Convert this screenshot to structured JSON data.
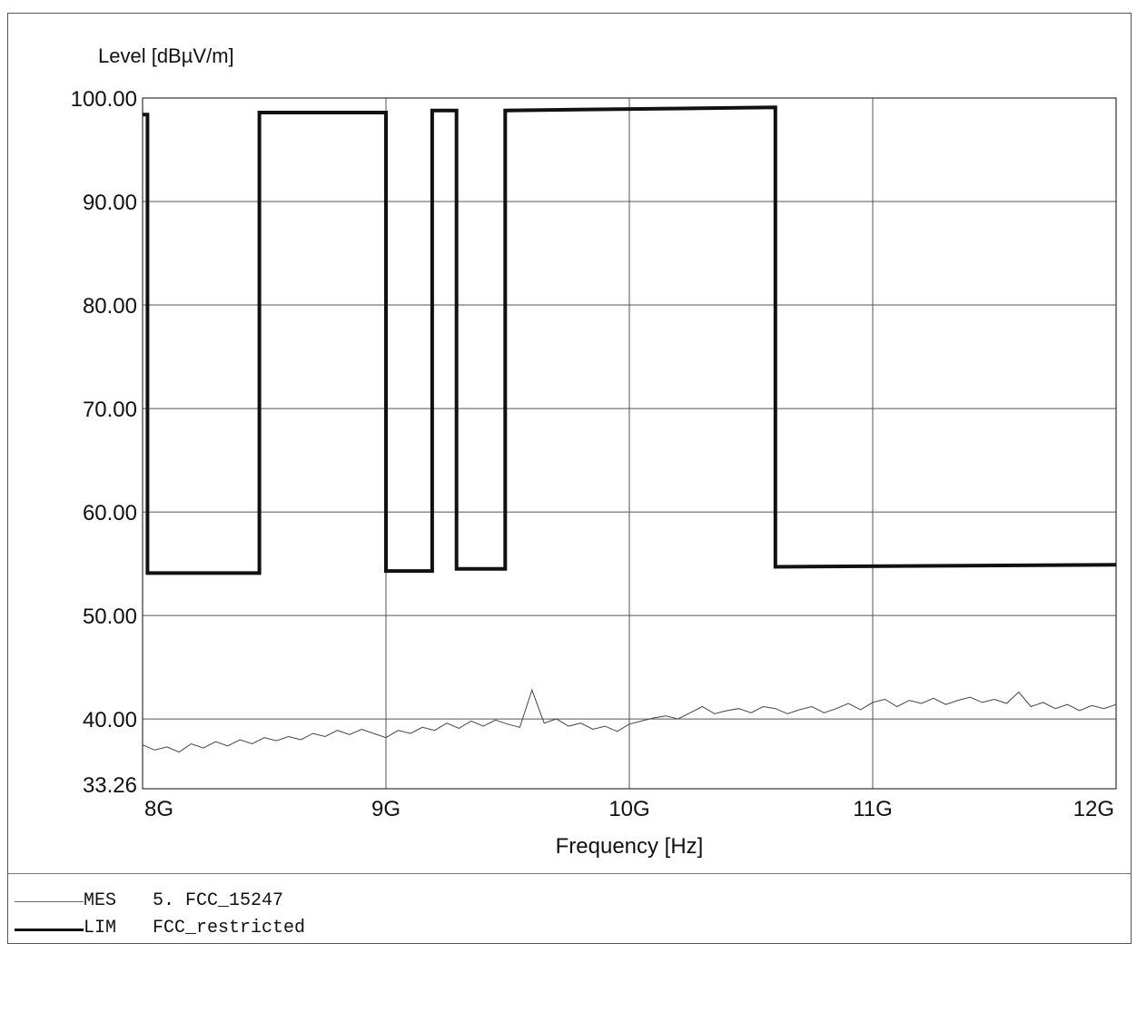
{
  "chart_data": {
    "type": "line",
    "title": "",
    "ylabel": "Level [dBµV/m]",
    "xlabel": "Frequency [Hz]",
    "xlim": [
      8.0,
      12.0
    ],
    "ylim": [
      33.26,
      100.0
    ],
    "x_unit": "GHz",
    "x_ticks": [
      {
        "value": 8,
        "label": "8G"
      },
      {
        "value": 9,
        "label": "9G"
      },
      {
        "value": 10,
        "label": "10G"
      },
      {
        "value": 11,
        "label": "11G"
      },
      {
        "value": 12,
        "label": "12G"
      }
    ],
    "y_ticks": [
      {
        "value": 100,
        "label": "100.00"
      },
      {
        "value": 90,
        "label": "90.00"
      },
      {
        "value": 80,
        "label": "80.00"
      },
      {
        "value": 70,
        "label": "70.00"
      },
      {
        "value": 60,
        "label": "60.00"
      },
      {
        "value": 50,
        "label": "50.00"
      },
      {
        "value": 40,
        "label": "40.00"
      },
      {
        "value": 33.26,
        "label": "33.26"
      }
    ],
    "grid": true,
    "legend_position": "bottom",
    "series": [
      {
        "code": "MES",
        "name": "5. FCC_15247",
        "style": "thin",
        "color": "#444444",
        "x": [
          8.0,
          8.05,
          8.1,
          8.15,
          8.2,
          8.25,
          8.3,
          8.35,
          8.4,
          8.45,
          8.5,
          8.55,
          8.6,
          8.65,
          8.7,
          8.75,
          8.8,
          8.85,
          8.9,
          8.95,
          9.0,
          9.05,
          9.1,
          9.15,
          9.2,
          9.25,
          9.3,
          9.35,
          9.4,
          9.45,
          9.5,
          9.55,
          9.6,
          9.65,
          9.7,
          9.75,
          9.8,
          9.85,
          9.9,
          9.95,
          10.0,
          10.05,
          10.1,
          10.15,
          10.2,
          10.25,
          10.3,
          10.35,
          10.4,
          10.45,
          10.5,
          10.55,
          10.6,
          10.65,
          10.7,
          10.75,
          10.8,
          10.85,
          10.9,
          10.95,
          11.0,
          11.05,
          11.1,
          11.15,
          11.2,
          11.25,
          11.3,
          11.35,
          11.4,
          11.45,
          11.5,
          11.55,
          11.6,
          11.65,
          11.7,
          11.75,
          11.8,
          11.85,
          11.9,
          11.95,
          12.0
        ],
        "y": [
          37.5,
          37.0,
          37.3,
          36.8,
          37.6,
          37.2,
          37.8,
          37.4,
          38.0,
          37.6,
          38.2,
          37.9,
          38.3,
          38.0,
          38.6,
          38.3,
          38.9,
          38.5,
          39.0,
          38.6,
          38.2,
          38.9,
          38.6,
          39.2,
          38.9,
          39.6,
          39.1,
          39.8,
          39.3,
          39.9,
          39.5,
          39.2,
          42.8,
          39.6,
          40.0,
          39.3,
          39.6,
          39.0,
          39.3,
          38.8,
          39.5,
          39.8,
          40.1,
          40.3,
          40.0,
          40.6,
          41.2,
          40.5,
          40.8,
          41.0,
          40.6,
          41.2,
          41.0,
          40.5,
          40.9,
          41.2,
          40.6,
          41.0,
          41.5,
          40.9,
          41.6,
          41.9,
          41.2,
          41.8,
          41.5,
          42.0,
          41.4,
          41.8,
          42.1,
          41.6,
          41.9,
          41.5,
          42.6,
          41.2,
          41.6,
          41.0,
          41.4,
          40.8,
          41.3,
          41.0,
          41.4
        ]
      },
      {
        "code": "LIM",
        "name": "FCC_restricted",
        "style": "thick",
        "color": "#111111",
        "x": [
          8.0,
          8.02,
          8.02,
          8.48,
          8.48,
          9.0,
          9.0,
          9.19,
          9.19,
          9.29,
          9.29,
          9.49,
          9.49,
          10.6,
          10.6,
          12.0
        ],
        "y": [
          98.4,
          98.4,
          54.1,
          54.1,
          98.6,
          98.6,
          54.3,
          54.3,
          98.8,
          98.8,
          54.5,
          54.5,
          98.8,
          99.1,
          54.7,
          54.9
        ]
      }
    ]
  }
}
